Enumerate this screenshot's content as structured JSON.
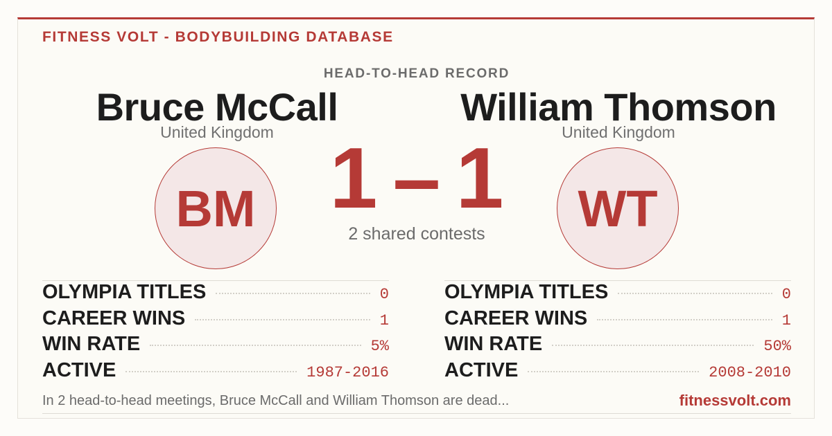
{
  "header": {
    "brand": "FITNESS VOLT - BODYBUILDING DATABASE",
    "title": "HEAD-TO-HEAD RECORD"
  },
  "left": {
    "name": "Bruce McCall",
    "country": "United Kingdom",
    "initials": "BM",
    "stats": [
      {
        "label": "OLYMPIA TITLES",
        "value": "0"
      },
      {
        "label": "CAREER WINS",
        "value": "1"
      },
      {
        "label": "WIN RATE",
        "value": "5%"
      },
      {
        "label": "ACTIVE",
        "value": "1987-2016"
      }
    ]
  },
  "right": {
    "name": "William Thomson",
    "country": "United Kingdom",
    "initials": "WT",
    "stats": [
      {
        "label": "OLYMPIA TITLES",
        "value": "0"
      },
      {
        "label": "CAREER WINS",
        "value": "1"
      },
      {
        "label": "WIN RATE",
        "value": "50%"
      },
      {
        "label": "ACTIVE",
        "value": "2008-2010"
      }
    ]
  },
  "score": {
    "left": "1",
    "separator": "–",
    "right": "1",
    "subtitle": "2 shared contests"
  },
  "footer": {
    "summary": "In 2 head-to-head meetings, Bruce McCall and William Thomson are dead...",
    "site": "fitnessvolt.com"
  }
}
